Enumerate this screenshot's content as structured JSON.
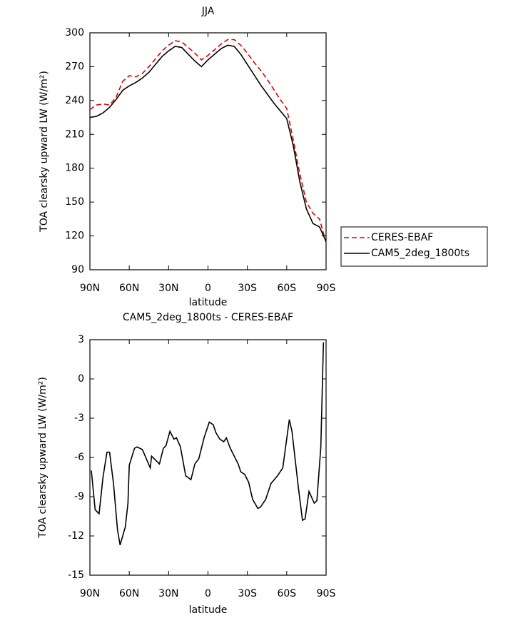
{
  "chart_data": [
    {
      "type": "line",
      "title": "JJA",
      "xlabel": "latitude",
      "ylabel": "TOA clearsky upward LW (W/m²)",
      "x": [
        90,
        85,
        80,
        75,
        70,
        65,
        60,
        55,
        50,
        45,
        40,
        35,
        30,
        25,
        20,
        15,
        10,
        5,
        0,
        -5,
        -10,
        -15,
        -20,
        -25,
        -30,
        -35,
        -40,
        -45,
        -50,
        -55,
        -60,
        -65,
        -70,
        -75,
        -80,
        -85,
        -90
      ],
      "series": [
        {
          "name": "CERES-EBAF",
          "color": "#e00000",
          "dash": "dashed",
          "values": [
            232,
            236,
            237,
            236,
            243,
            257,
            262,
            261,
            264,
            270,
            277,
            284,
            289,
            293,
            292,
            287,
            282,
            276,
            280,
            285,
            290,
            294,
            294,
            289,
            282,
            274,
            267,
            259,
            250,
            241,
            233,
            205,
            175,
            150,
            140,
            135,
            114
          ]
        },
        {
          "name": "CAM5_2deg_1800ts",
          "color": "#000000",
          "dash": "solid",
          "values": [
            225,
            226,
            229,
            234,
            241,
            249,
            253,
            256,
            260,
            265,
            272,
            279,
            284,
            288,
            287,
            281,
            275,
            270,
            276,
            281,
            286,
            289,
            288,
            281,
            272,
            263,
            254,
            246,
            238,
            231,
            224,
            200,
            168,
            144,
            131,
            128,
            115
          ]
        }
      ],
      "xlim": [
        90,
        -90
      ],
      "xticks": [
        {
          "value": 90,
          "label": "90N"
        },
        {
          "value": 60,
          "label": "60N"
        },
        {
          "value": 30,
          "label": "30N"
        },
        0,
        {
          "value": -30,
          "label": "30S"
        },
        {
          "value": -60,
          "label": "60S"
        },
        {
          "value": -90,
          "label": "90S"
        }
      ],
      "ylim": [
        90,
        300
      ],
      "yticks": [
        90,
        120,
        150,
        180,
        210,
        240,
        270,
        300
      ],
      "legend": "right"
    },
    {
      "type": "line",
      "title": "CAM5_2deg_1800ts - CERES-EBAF",
      "xlabel": "latitude",
      "ylabel": "TOA clearsky upward LW (W/m²)",
      "x": [
        88.9,
        86,
        83,
        80,
        77,
        75,
        72,
        69,
        67,
        63,
        61,
        60,
        56,
        54,
        50,
        44,
        43,
        37,
        34,
        32,
        29,
        26,
        24,
        21,
        17,
        13,
        10,
        7,
        3,
        -1,
        -4,
        -6,
        -9,
        -12,
        -14,
        -17,
        -23,
        -25,
        -28,
        -31,
        -34,
        -38,
        -40,
        -44,
        -48,
        -53,
        -57,
        -62,
        -64,
        -69,
        -72,
        -74,
        -77,
        -81,
        -83,
        -86,
        -88
      ],
      "series": [
        {
          "color": "#000000",
          "dash": "solid",
          "values": [
            -7,
            -10,
            -10.3,
            -7.5,
            -5.6,
            -5.6,
            -8,
            -11.5,
            -12.7,
            -11.3,
            -9.5,
            -6.6,
            -5.3,
            -5.2,
            -5.4,
            -6.8,
            -5.9,
            -6.5,
            -5.3,
            -5.1,
            -4,
            -4.6,
            -4.5,
            -5.2,
            -7.4,
            -7.7,
            -6.5,
            -6.1,
            -4.5,
            -3.3,
            -3.5,
            -4.1,
            -4.6,
            -4.8,
            -4.5,
            -5.3,
            -6.5,
            -7.1,
            -7.3,
            -7.9,
            -9.2,
            -9.9,
            -9.8,
            -9.2,
            -8,
            -7.4,
            -6.8,
            -3.1,
            -4,
            -8.4,
            -10.8,
            -10.7,
            -8.6,
            -9.5,
            -9.3,
            -5.2,
            2.8
          ]
        }
      ],
      "xlim": [
        90,
        -90
      ],
      "xticks": [
        {
          "value": 90,
          "label": "90N"
        },
        {
          "value": 60,
          "label": "60N"
        },
        {
          "value": 30,
          "label": "30N"
        },
        0,
        {
          "value": -30,
          "label": "30S"
        },
        {
          "value": -60,
          "label": "60S"
        },
        {
          "value": -90,
          "label": "90S"
        }
      ],
      "ylim": [
        -15,
        3
      ],
      "yticks": [
        -15,
        -12,
        -9,
        -6,
        -3,
        0,
        3
      ]
    }
  ]
}
